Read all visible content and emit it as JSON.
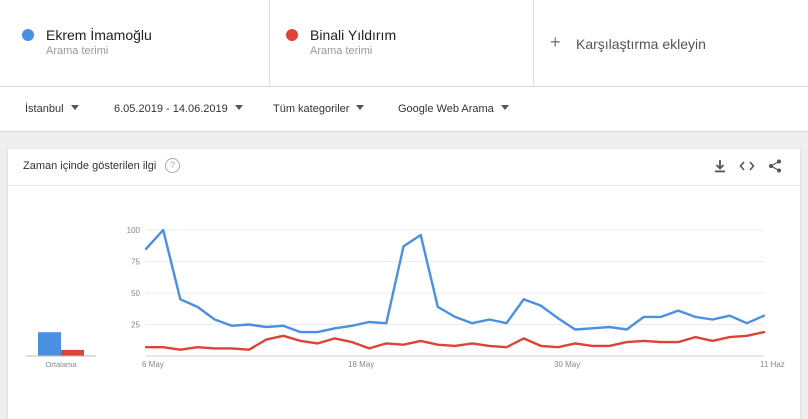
{
  "terms": [
    {
      "name": "Ekrem İmamoğlu",
      "subtitle": "Arama terimi",
      "color": "#4a90e2"
    },
    {
      "name": "Binali Yıldırım",
      "subtitle": "Arama terimi",
      "color": "#db4437"
    }
  ],
  "add_term": {
    "label": "Karşılaştırma ekleyin",
    "icon": "plus-icon"
  },
  "filters": {
    "location": "İstanbul",
    "date_range": "6.05.2019 - 14.06.2019",
    "category": "Tüm kategoriler",
    "search_type": "Google Web Arama"
  },
  "card": {
    "title": "Zaman içinde gösterilen ilgi",
    "icons": [
      "help-icon",
      "download-icon",
      "embed-icon",
      "share-icon"
    ]
  },
  "chart_data": {
    "type": "line",
    "ylim": [
      0,
      100
    ],
    "yticks": [
      "100",
      "75",
      "50",
      "25"
    ],
    "x_tick_labels": [
      "6 May",
      "18 May",
      "30 May",
      "11 Haz"
    ],
    "average_label": "Ortalama",
    "averages": [
      35,
      9
    ],
    "series": [
      {
        "name": "Ekrem İmamoğlu",
        "color": "#4a90e2",
        "values": [
          85,
          100,
          45,
          39,
          29,
          24,
          25,
          23,
          24,
          19,
          19,
          22,
          24,
          27,
          26,
          87,
          96,
          39,
          31,
          26,
          29,
          26,
          45,
          40,
          30,
          21,
          22,
          23,
          21,
          31,
          31,
          36,
          31,
          29,
          32,
          26,
          32
        ]
      },
      {
        "name": "Binali Yıldırım",
        "color": "#db4437",
        "values": [
          7,
          7,
          5,
          7,
          6,
          6,
          5,
          13,
          16,
          12,
          10,
          14,
          11,
          6,
          10,
          9,
          12,
          9,
          8,
          10,
          8,
          7,
          14,
          8,
          7,
          10,
          8,
          8,
          11,
          12,
          11,
          11,
          15,
          12,
          15,
          16,
          19
        ]
      }
    ]
  }
}
